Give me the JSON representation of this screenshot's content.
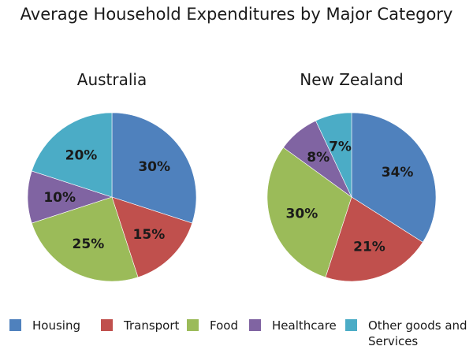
{
  "title": "Average Household Expenditures by Major Category",
  "colors": {
    "Housing": "#4F81BD",
    "Transport": "#C0504D",
    "Food": "#9BBB59",
    "Healthcare": "#8064A2",
    "Other goods and Services": "#4BACC6"
  },
  "legend": [
    {
      "label": "Housing",
      "color": "#4F81BD"
    },
    {
      "label": "Transport",
      "color": "#C0504D"
    },
    {
      "label": "Food",
      "color": "#9BBB59"
    },
    {
      "label": "Healthcare",
      "color": "#8064A2"
    },
    {
      "label": "Other goods and Services",
      "color": "#4BACC6"
    }
  ],
  "chart_data": [
    {
      "type": "pie",
      "title": "Australia",
      "categories": [
        "Housing",
        "Transport",
        "Food",
        "Healthcare",
        "Other goods and Services"
      ],
      "values": [
        30,
        15,
        25,
        10,
        20
      ],
      "labels": [
        "30%",
        "15%",
        "25%",
        "10%",
        "20%"
      ]
    },
    {
      "type": "pie",
      "title": "New Zealand",
      "categories": [
        "Housing",
        "Transport",
        "Food",
        "Healthcare",
        "Other goods and Services"
      ],
      "values": [
        34,
        21,
        30,
        8,
        7
      ],
      "labels": [
        "34%",
        "21%",
        "30%",
        "8%",
        "7%"
      ]
    }
  ]
}
